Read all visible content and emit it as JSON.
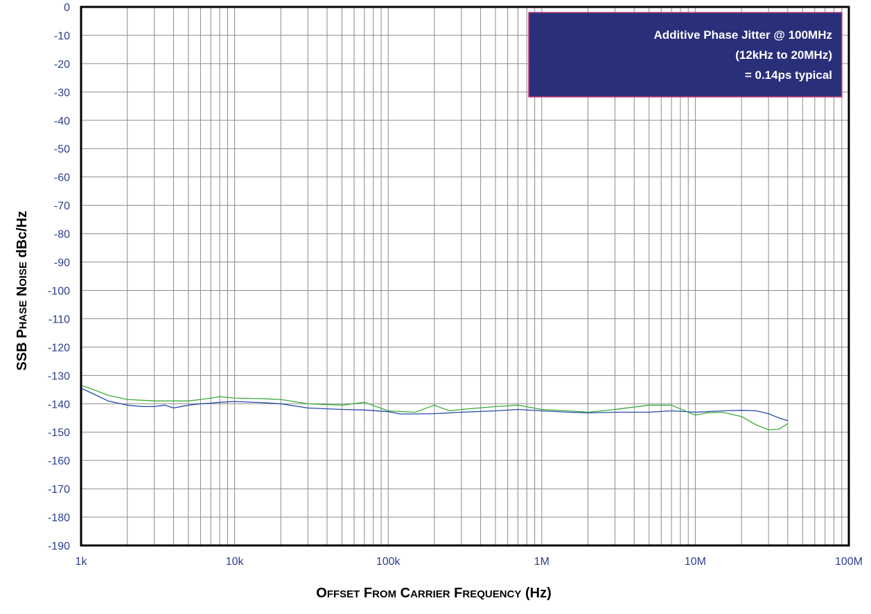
{
  "colors": {
    "grid": "#8a8a8a",
    "frame": "#000000",
    "tick_text": "#2b3f8f",
    "annotation_bg": "#2a2f7a",
    "annotation_border": "#c2407a",
    "series_blue": "#2448a8",
    "series_green": "#3aaa3a"
  },
  "chart_data": {
    "type": "line",
    "x_scale": "log",
    "xlim": [
      1000,
      100000000
    ],
    "ylim": [
      -190,
      0
    ],
    "grid": true,
    "xlabel": {
      "parts": [
        {
          "text": "O",
          "small": false
        },
        {
          "text": "FFSET",
          "small": true
        },
        {
          "text": " F",
          "small": false
        },
        {
          "text": "ROM",
          "small": true
        },
        {
          "text": " C",
          "small": false
        },
        {
          "text": "ARRIER",
          "small": true
        },
        {
          "text": " F",
          "small": false
        },
        {
          "text": "REQUENCY",
          "small": true
        },
        {
          "text": " (Hz)",
          "small": false
        }
      ]
    },
    "ylabel": {
      "parts": [
        {
          "text": "SSB P",
          "small": false
        },
        {
          "text": "HASE",
          "small": true
        },
        {
          "text": " N",
          "small": false
        },
        {
          "text": "OISE",
          "small": true
        },
        {
          "text": " dBc/Hz",
          "small": false
        }
      ]
    },
    "x_ticks": [
      {
        "value": 1000,
        "label": "1k"
      },
      {
        "value": 10000,
        "label": "10k"
      },
      {
        "value": 100000,
        "label": "100k"
      },
      {
        "value": 1000000,
        "label": "1M"
      },
      {
        "value": 10000000,
        "label": "10M"
      },
      {
        "value": 100000000,
        "label": "100M"
      }
    ],
    "y_ticks": [
      {
        "value": 0,
        "label": "0"
      },
      {
        "value": -10,
        "label": "-10"
      },
      {
        "value": -20,
        "label": "-20"
      },
      {
        "value": -30,
        "label": "-30"
      },
      {
        "value": -40,
        "label": "-40"
      },
      {
        "value": -50,
        "label": "-50"
      },
      {
        "value": -60,
        "label": "-60"
      },
      {
        "value": -70,
        "label": "-70"
      },
      {
        "value": -80,
        "label": "-80"
      },
      {
        "value": -90,
        "label": "-90"
      },
      {
        "value": -100,
        "label": "-100"
      },
      {
        "value": -110,
        "label": "-110"
      },
      {
        "value": -120,
        "label": "-120"
      },
      {
        "value": -130,
        "label": "-130"
      },
      {
        "value": -140,
        "label": "-140"
      },
      {
        "value": -150,
        "label": "-150"
      },
      {
        "value": -160,
        "label": "-160"
      },
      {
        "value": -170,
        "label": "-170"
      },
      {
        "value": -180,
        "label": "-180"
      },
      {
        "value": -190,
        "label": "-190"
      }
    ],
    "annotation": {
      "lines": [
        "Additive Phase Jitter @ 100MHz",
        "(12kHz to 20MHz)",
        "= 0.14ps typical"
      ],
      "placement": "top-right"
    },
    "series": [
      {
        "color": "#2448a8",
        "points": [
          [
            1000,
            -134.5
          ],
          [
            1200,
            -136.5
          ],
          [
            1500,
            -139
          ],
          [
            2000,
            -140.5
          ],
          [
            2500,
            -141
          ],
          [
            3000,
            -141
          ],
          [
            3500,
            -140.5
          ],
          [
            4000,
            -141.5
          ],
          [
            5000,
            -140.5
          ],
          [
            6000,
            -140
          ],
          [
            7000,
            -139.8
          ],
          [
            8000,
            -139.5
          ],
          [
            10000,
            -139.2
          ],
          [
            15000,
            -139.6
          ],
          [
            20000,
            -140
          ],
          [
            30000,
            -141.5
          ],
          [
            50000,
            -142
          ],
          [
            70000,
            -142.2
          ],
          [
            100000,
            -142.8
          ],
          [
            120000,
            -143.6
          ],
          [
            150000,
            -143.6
          ],
          [
            200000,
            -143.5
          ],
          [
            300000,
            -143
          ],
          [
            500000,
            -142.5
          ],
          [
            700000,
            -142
          ],
          [
            1000000,
            -142.5
          ],
          [
            1500000,
            -143
          ],
          [
            2000000,
            -143.2
          ],
          [
            3000000,
            -143
          ],
          [
            5000000,
            -143
          ],
          [
            7000000,
            -142.5
          ],
          [
            10000000,
            -143
          ],
          [
            15000000,
            -142.5
          ],
          [
            20000000,
            -142.3
          ],
          [
            25000000,
            -142.5
          ],
          [
            30000000,
            -143.5
          ],
          [
            35000000,
            -145
          ],
          [
            40000000,
            -146
          ]
        ]
      },
      {
        "color": "#3aaa3a",
        "points": [
          [
            1000,
            -133.5
          ],
          [
            1200,
            -135
          ],
          [
            1500,
            -137
          ],
          [
            2000,
            -138.5
          ],
          [
            3000,
            -139
          ],
          [
            4000,
            -139
          ],
          [
            5000,
            -139
          ],
          [
            6000,
            -138.5
          ],
          [
            7000,
            -138
          ],
          [
            8000,
            -137.5
          ],
          [
            10000,
            -138
          ],
          [
            15000,
            -138.2
          ],
          [
            20000,
            -138.5
          ],
          [
            30000,
            -140
          ],
          [
            50000,
            -140.5
          ],
          [
            70000,
            -139.5
          ],
          [
            100000,
            -142.5
          ],
          [
            150000,
            -143
          ],
          [
            200000,
            -140.5
          ],
          [
            250000,
            -142.5
          ],
          [
            300000,
            -142
          ],
          [
            500000,
            -141
          ],
          [
            700000,
            -140.5
          ],
          [
            1000000,
            -142
          ],
          [
            1500000,
            -142.5
          ],
          [
            2000000,
            -143
          ],
          [
            3000000,
            -142
          ],
          [
            5000000,
            -140.5
          ],
          [
            7000000,
            -140.5
          ],
          [
            10000000,
            -144
          ],
          [
            12000000,
            -143.2
          ],
          [
            15000000,
            -143
          ],
          [
            20000000,
            -144.5
          ],
          [
            25000000,
            -147.5
          ],
          [
            30000000,
            -149.2
          ],
          [
            35000000,
            -149
          ],
          [
            40000000,
            -147
          ]
        ]
      }
    ]
  }
}
